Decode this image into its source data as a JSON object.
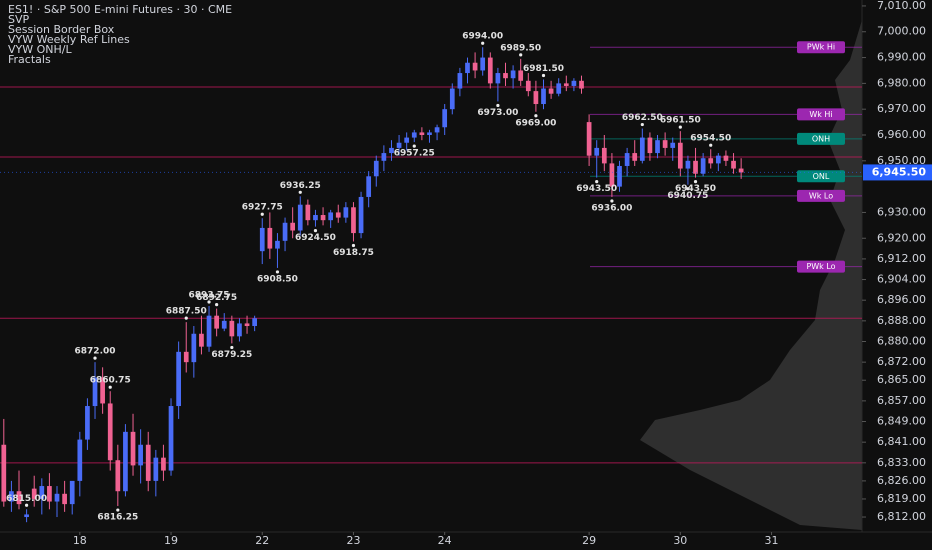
{
  "chart_data": {
    "type": "candlestick",
    "title": "ES1! · S&P 500 E-mini Futures · 30 · CME",
    "indicators": [
      "SVP",
      "Session Border Box",
      "VYW Weekly Ref Lines",
      "VYW ONH/L",
      "Fractals"
    ],
    "up_color": "#4a6cf7",
    "down_color": "#f06292",
    "xlim": [
      -10.5,
      102.9
    ],
    "ylim": [
      6806.2,
      7012.3
    ],
    "xticks": [
      {
        "value": 0,
        "label": "18"
      },
      {
        "value": 12,
        "label": "19"
      },
      {
        "value": 24,
        "label": "22"
      },
      {
        "value": 36,
        "label": "23"
      },
      {
        "value": 48,
        "label": "24"
      },
      {
        "value": 67,
        "label": "29"
      },
      {
        "value": 79,
        "label": "30"
      },
      {
        "value": 91,
        "label": "31"
      }
    ],
    "yticks": [
      {
        "value": 7010,
        "label": "7,010.00"
      },
      {
        "value": 7000,
        "label": "7,000.00"
      },
      {
        "value": 6990,
        "label": "6,990.00"
      },
      {
        "value": 6980,
        "label": "6,980.00"
      },
      {
        "value": 6970,
        "label": "6,970.00"
      },
      {
        "value": 6960,
        "label": "6,960.00"
      },
      {
        "value": 6950,
        "label": "6,950.00"
      },
      {
        "value": 6930,
        "label": "6,930.00"
      },
      {
        "value": 6920,
        "label": "6,920.00"
      },
      {
        "value": 6912,
        "label": "6,912.00"
      },
      {
        "value": 6904,
        "label": "6,904.00"
      },
      {
        "value": 6896,
        "label": "6,896.00"
      },
      {
        "value": 6888,
        "label": "6,888.00"
      },
      {
        "value": 6880,
        "label": "6,880.00"
      },
      {
        "value": 6872,
        "label": "6,872.00"
      },
      {
        "value": 6865,
        "label": "6,865.00"
      },
      {
        "value": 6857,
        "label": "6,857.00"
      },
      {
        "value": 6849,
        "label": "6,849.00"
      },
      {
        "value": 6841,
        "label": "6,841.00"
      },
      {
        "value": 6833,
        "label": "6,833.00"
      },
      {
        "value": 6826,
        "label": "6,826.00"
      },
      {
        "value": 6819,
        "label": "6,819.00"
      },
      {
        "value": 6812,
        "label": "6,812.00"
      }
    ],
    "last_price": {
      "value": 6945.5,
      "label": "6,945.50",
      "color": "#2962ff"
    },
    "x": [
      -10,
      -9,
      -8,
      -7,
      -6,
      -5,
      -4,
      -3,
      -2,
      -1,
      0,
      1,
      2,
      3,
      4,
      5,
      6,
      7,
      8,
      9,
      10,
      11,
      12,
      13,
      14,
      15,
      16,
      17,
      18,
      19,
      20,
      21,
      22,
      23,
      24,
      25,
      26,
      27,
      28,
      29,
      30,
      31,
      32,
      33,
      34,
      35,
      36,
      37,
      38,
      39,
      40,
      41,
      42,
      43,
      44,
      45,
      46,
      47,
      48,
      49,
      50,
      51,
      52,
      53,
      54,
      55,
      56,
      57,
      58,
      59,
      60,
      61,
      62,
      63,
      64,
      65,
      66,
      67,
      68,
      69,
      70,
      71,
      72,
      73,
      74,
      75,
      76,
      77,
      78,
      79,
      80,
      81,
      82,
      83,
      84,
      85,
      86,
      87
    ],
    "open": [
      6840,
      6818,
      6822,
      6812,
      6823,
      6819,
      6824,
      6818,
      6821,
      6817,
      6826,
      6842,
      6855,
      6866,
      6856,
      6834,
      6822,
      6845,
      6832,
      6840,
      6826,
      6835,
      6830,
      6855,
      6876,
      6872,
      6883,
      6878,
      6890,
      6885,
      6888,
      6882,
      6887,
      6886,
      6915,
      6924,
      6916,
      6919,
      6926,
      6923,
      6933,
      6927,
      6929,
      6927,
      6930,
      6928,
      6932,
      6922,
      6936,
      6944,
      6950,
      6953,
      6955,
      6957,
      6959,
      6961,
      6960,
      6961,
      6963,
      6970,
      6978,
      6984,
      6988,
      6985,
      6990,
      6980,
      6984,
      6982,
      6985,
      6981,
      6977,
      6972,
      6978,
      6976,
      6980,
      6979,
      6981,
      6965,
      6952,
      6955,
      6949,
      6940,
      6948,
      6953,
      6950,
      6959,
      6953,
      6958,
      6955,
      6957,
      6947,
      6950,
      6945,
      6951,
      6949,
      6952,
      6950,
      6947
    ],
    "high": [
      6850,
      6826,
      6830,
      6815,
      6828,
      6827,
      6829,
      6824,
      6826,
      6825,
      6845,
      6858,
      6872,
      6870,
      6860.75,
      6840,
      6848,
      6852,
      6846,
      6845,
      6838,
      6840,
      6858,
      6880,
      6887.5,
      6886,
      6890,
      6893.75,
      6892.75,
      6891,
      6890,
      6889,
      6890,
      6890,
      6927.75,
      6930,
      6922,
      6928,
      6932,
      6936.25,
      6935,
      6931,
      6932,
      6931,
      6933,
      6934,
      6934,
      6938,
      6946,
      6952,
      6956,
      6958,
      6960,
      6961,
      6962,
      6963,
      6962,
      6964,
      6972,
      6980,
      6986,
      6990,
      6992,
      6994,
      6992,
      6986,
      6988,
      6987,
      6989.5,
      6984,
      6981,
      6981.5,
      6981,
      6982,
      6983,
      6982,
      6983,
      6968,
      6958,
      6960,
      6953,
      6950,
      6955,
      6958,
      6962.5,
      6961,
      6960,
      6961,
      6959,
      6961.5,
      6952,
      6955,
      6953,
      6954.5,
      6953,
      6954,
      6953,
      6951
    ],
    "low": [
      6816,
      6814,
      6815,
      6810,
      6816,
      6813,
      6815,
      6812,
      6814,
      6813,
      6820,
      6838,
      6850,
      6852,
      6830,
      6816.25,
      6820,
      6828,
      6825,
      6822,
      6820,
      6826,
      6828,
      6850,
      6868,
      6866,
      6875,
      6876,
      6882,
      6884,
      6879.25,
      6880,
      6883,
      6884,
      6910,
      6912,
      6908.5,
      6915,
      6920,
      6921,
      6925,
      6924.5,
      6925,
      6924,
      6926,
      6926,
      6918.75,
      6920,
      6932,
      6940,
      6946,
      6950,
      6952,
      6954,
      6957.25,
      6958,
      6957,
      6958,
      6960,
      6968,
      6975,
      6980,
      6982,
      6983,
      6978,
      6973,
      6979,
      6978,
      6979,
      6975,
      6969,
      6970,
      6974,
      6975,
      6977,
      6977,
      6976,
      6948,
      6943.5,
      6946,
      6936,
      6938,
      6944,
      6948,
      6949,
      6950,
      6951,
      6952,
      6950,
      6944,
      6940.75,
      6943.5,
      6944,
      6947,
      6946,
      6948,
      6945,
      6943
    ],
    "close": [
      6818,
      6822,
      6817,
      6813,
      6819,
      6824,
      6818,
      6821,
      6817,
      6826,
      6842,
      6855,
      6866,
      6856,
      6834,
      6822,
      6845,
      6832,
      6840,
      6826,
      6835,
      6830,
      6855,
      6876,
      6872,
      6883,
      6878,
      6890,
      6885,
      6888,
      6882,
      6887,
      6886,
      6889,
      6924,
      6916,
      6919,
      6926,
      6923,
      6933,
      6927,
      6929,
      6927,
      6930,
      6928,
      6932,
      6922,
      6936,
      6944,
      6950,
      6953,
      6955,
      6957,
      6959,
      6961,
      6960,
      6961,
      6963,
      6970,
      6978,
      6984,
      6988,
      6985,
      6990,
      6980,
      6984,
      6982,
      6985,
      6981,
      6977,
      6972,
      6978,
      6976,
      6980,
      6979,
      6981,
      6978,
      6952,
      6955,
      6949,
      6940,
      6948,
      6953,
      6950,
      6959,
      6953,
      6958,
      6955,
      6957,
      6947,
      6950,
      6945,
      6951,
      6949,
      6952,
      6950,
      6947,
      6945.5
    ],
    "fractals": [
      {
        "x": -7,
        "value": 6815,
        "label": "6815.00"
      },
      {
        "x": 2,
        "value": 6872,
        "label": "6872.00"
      },
      {
        "x": 4,
        "value": 6860.75,
        "label": "6860.75"
      },
      {
        "x": 5,
        "value": 6816.25,
        "label": "6816.25"
      },
      {
        "x": 14,
        "value": 6887.5,
        "label": "6887.50"
      },
      {
        "x": 17,
        "value": 6893.75,
        "label": "6893.75"
      },
      {
        "x": 18,
        "value": 6892.75,
        "label": "6892.75"
      },
      {
        "x": 20,
        "value": 6879.25,
        "label": "6879.25"
      },
      {
        "x": 24,
        "value": 6927.75,
        "label": "6927.75"
      },
      {
        "x": 26,
        "value": 6908.5,
        "label": "6908.50"
      },
      {
        "x": 29,
        "value": 6936.25,
        "label": "6936.25"
      },
      {
        "x": 31,
        "value": 6924.5,
        "label": "6924.50"
      },
      {
        "x": 36,
        "value": 6918.75,
        "label": "6918.75"
      },
      {
        "x": 44,
        "value": 6957.25,
        "label": "6957.25"
      },
      {
        "x": 53,
        "value": 6994,
        "label": "6994.00"
      },
      {
        "x": 55,
        "value": 6973,
        "label": "6973.00"
      },
      {
        "x": 58,
        "value": 6989.5,
        "label": "6989.50"
      },
      {
        "x": 61,
        "value": 6981.5,
        "label": "6981.50"
      },
      {
        "x": 60,
        "value": 6969,
        "label": "6969.00"
      },
      {
        "x": 68,
        "value": 6943.5,
        "label": "6943.50"
      },
      {
        "x": 70,
        "value": 6936,
        "label": "6936.00"
      },
      {
        "x": 74,
        "value": 6962.5,
        "label": "6962.50"
      },
      {
        "x": 79,
        "value": 6961.5,
        "label": "6961.50"
      },
      {
        "x": 80,
        "value": 6940.75,
        "label": "6940.75"
      },
      {
        "x": 81,
        "value": 6943.5,
        "label": "6943.50"
      },
      {
        "x": 83,
        "value": 6954.5,
        "label": "6954.50"
      }
    ],
    "ref_lines": [
      {
        "label": "PWk Hi",
        "value": 6994,
        "color": "#9c27b0"
      },
      {
        "label": "Wk Hi",
        "value": 6968,
        "color": "#9c27b0"
      },
      {
        "label": "ONH",
        "value": 6958.5,
        "color": "#00897b"
      },
      {
        "label": "ONL",
        "value": 6944,
        "color": "#00897b"
      },
      {
        "label": "Wk Lo",
        "value": 6936.4,
        "color": "#9c27b0"
      },
      {
        "label": "PWk Lo",
        "value": 6909,
        "color": "#9c27b0"
      }
    ],
    "levels": [
      6978.6,
      6951.5,
      6889,
      6833
    ],
    "level_color": "#c2185b"
  }
}
